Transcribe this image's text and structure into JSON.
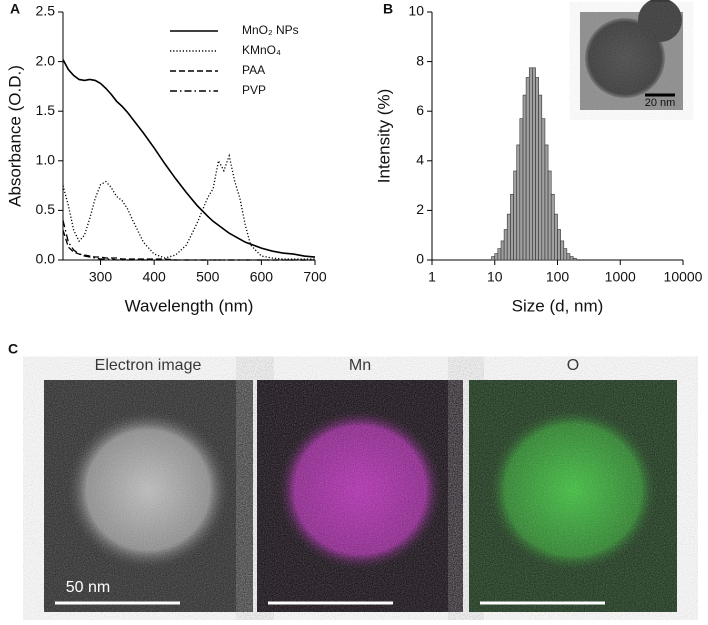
{
  "chart_data": [
    {
      "type": "line",
      "x_label": "Wavelength (nm)",
      "y_label": "Absorbance (O.D.)",
      "x": [
        230,
        240,
        250,
        260,
        270,
        280,
        290,
        300,
        310,
        320,
        330,
        340,
        350,
        360,
        380,
        400,
        420,
        440,
        460,
        480,
        500,
        510,
        520,
        530,
        540,
        550,
        560,
        570,
        580,
        600,
        620,
        640,
        660,
        680,
        700
      ],
      "series": [
        {
          "name": "MnO₂ NPs",
          "color": "#000000",
          "dash": "solid",
          "values": [
            2.02,
            1.92,
            1.86,
            1.82,
            1.81,
            1.82,
            1.81,
            1.78,
            1.73,
            1.67,
            1.6,
            1.55,
            1.49,
            1.42,
            1.28,
            1.13,
            0.97,
            0.82,
            0.68,
            0.55,
            0.44,
            0.39,
            0.35,
            0.31,
            0.27,
            0.24,
            0.21,
            0.18,
            0.16,
            0.12,
            0.09,
            0.07,
            0.06,
            0.04,
            0.03
          ]
        },
        {
          "name": "KMnO₄",
          "color": "#000000",
          "dash": "dotted",
          "values": [
            0.75,
            0.55,
            0.3,
            0.19,
            0.25,
            0.42,
            0.62,
            0.76,
            0.79,
            0.73,
            0.64,
            0.6,
            0.52,
            0.4,
            0.18,
            0.06,
            0.02,
            0.05,
            0.15,
            0.37,
            0.63,
            0.72,
            1.0,
            0.9,
            1.05,
            0.8,
            0.62,
            0.35,
            0.15,
            0.04,
            0.02,
            0.01,
            0.01,
            0.01,
            0.01
          ]
        },
        {
          "name": "PAA",
          "color": "#000000",
          "dash": "dashed",
          "values": [
            0.3,
            0.13,
            0.08,
            0.06,
            0.05,
            0.04,
            0.03,
            0.03,
            0.02,
            0.02,
            0.02,
            0.01,
            0.01,
            0.01,
            0.01,
            0.01,
            0.01,
            0,
            0,
            0,
            0,
            0,
            0,
            0,
            0,
            0,
            0,
            0,
            0,
            0,
            0,
            0,
            0,
            0,
            0
          ]
        },
        {
          "name": "PVP",
          "color": "#000000",
          "dash": "dashdot",
          "values": [
            0.4,
            0.18,
            0.1,
            0.06,
            0.04,
            0.03,
            0.02,
            0.01,
            0.01,
            0.01,
            0,
            0,
            0,
            0,
            0,
            0,
            0,
            0,
            0,
            0,
            0,
            0,
            0,
            0,
            0,
            0,
            0,
            0,
            0,
            0,
            0,
            0,
            0,
            0,
            0
          ]
        }
      ],
      "xlim": [
        230,
        700
      ],
      "xticks": [
        300,
        400,
        500,
        600,
        700
      ],
      "ylim": [
        0,
        2.5
      ],
      "yticks": [
        {
          "value": 0,
          "label": "0.0"
        },
        0.5,
        {
          "value": 1,
          "label": "1.0"
        },
        1.5,
        {
          "value": 2,
          "label": "2.0"
        },
        2.5
      ],
      "legend": "upper right",
      "grid": false
    },
    {
      "type": "histogram",
      "x_label": "Size (d, nm)",
      "y_label": "Intensity (%)",
      "bins": [
        8.9,
        10,
        11.2,
        12.6,
        14.1,
        15.8,
        17.8,
        20,
        22.4,
        25.1,
        28.2,
        31.6,
        35.5,
        39.8,
        44.7,
        50.1,
        56.2,
        63.1,
        70.8,
        79.4,
        89.1,
        100,
        112,
        126,
        141,
        158,
        178,
        200
      ],
      "values": [
        0.14,
        0.26,
        0.46,
        0.77,
        1.23,
        1.85,
        2.65,
        3.59,
        4.64,
        5.7,
        6.65,
        7.36,
        7.75,
        7.75,
        7.36,
        6.65,
        5.7,
        4.64,
        3.59,
        2.65,
        1.85,
        1.23,
        0.77,
        0.46,
        0.26,
        0.14,
        0.07
      ],
      "color": "#a0a0a0",
      "xscale": "log",
      "xlim": [
        1,
        10000
      ],
      "xticks": [
        1,
        10,
        100,
        1000,
        10000
      ],
      "ylim": [
        0,
        10
      ],
      "yticks": [
        0,
        2,
        4,
        6,
        8,
        10
      ],
      "grid": false
    }
  ],
  "panel_labels": [
    "A",
    "B",
    "C"
  ],
  "inset": {
    "scale_label": "20 nm"
  },
  "maps": {
    "titles": [
      "Electron image",
      "Mn",
      "O"
    ],
    "scale_label": "50 nm"
  }
}
